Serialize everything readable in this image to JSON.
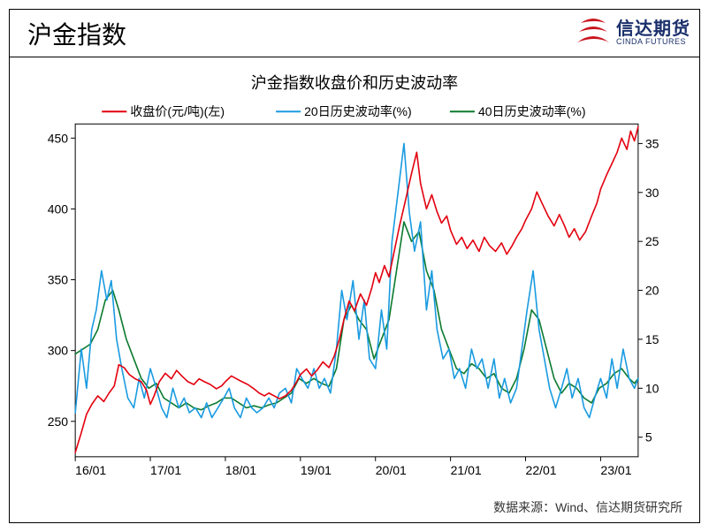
{
  "header": {
    "title": "沪金指数",
    "brand_cn": "信达期货",
    "brand_en": "CINDA FUTURES"
  },
  "source": "数据来源：Wind、信达期货研究所",
  "chart": {
    "type": "line",
    "title": "沪金指数收盘价和历史波动率",
    "title_fontsize": 18,
    "title_color": "#000000",
    "background_color": "#ffffff",
    "border_color": "#000000",
    "tick_fontsize": 14,
    "tick_color": "#000000",
    "line_width": 1.6,
    "legend": {
      "position": "top-inside",
      "fontsize": 14,
      "items": [
        {
          "label": "收盘价(元/吨)(左)",
          "color": "#e3000f"
        },
        {
          "label": "20日历史波动率(%)",
          "color": "#1a9be0"
        },
        {
          "label": "40日历史波动率(%)",
          "color": "#0b7a2f"
        }
      ]
    },
    "x": {
      "ticks": [
        "16/01",
        "17/01",
        "18/01",
        "19/01",
        "20/01",
        "21/01",
        "22/01",
        "23/01"
      ],
      "range": [
        0,
        7.5
      ]
    },
    "y_left": {
      "min": 225,
      "max": 460,
      "ticks": [
        250,
        300,
        350,
        400,
        450
      ]
    },
    "y_right": {
      "min": 3,
      "max": 37,
      "ticks": [
        5,
        10,
        15,
        20,
        25,
        30,
        35
      ]
    },
    "series": {
      "close": {
        "color": "#e3000f",
        "axis": "left",
        "points": [
          [
            0.0,
            228
          ],
          [
            0.08,
            242
          ],
          [
            0.15,
            255
          ],
          [
            0.22,
            262
          ],
          [
            0.3,
            268
          ],
          [
            0.38,
            264
          ],
          [
            0.45,
            270
          ],
          [
            0.52,
            275
          ],
          [
            0.58,
            290
          ],
          [
            0.65,
            288
          ],
          [
            0.72,
            283
          ],
          [
            0.8,
            280
          ],
          [
            0.88,
            278
          ],
          [
            0.95,
            272
          ],
          [
            1.0,
            262
          ],
          [
            1.05,
            268
          ],
          [
            1.12,
            278
          ],
          [
            1.2,
            284
          ],
          [
            1.28,
            280
          ],
          [
            1.35,
            286
          ],
          [
            1.42,
            282
          ],
          [
            1.5,
            278
          ],
          [
            1.58,
            276
          ],
          [
            1.65,
            280
          ],
          [
            1.72,
            278
          ],
          [
            1.8,
            276
          ],
          [
            1.88,
            273
          ],
          [
            1.95,
            275
          ],
          [
            2.0,
            278
          ],
          [
            2.08,
            282
          ],
          [
            2.15,
            280
          ],
          [
            2.22,
            278
          ],
          [
            2.3,
            276
          ],
          [
            2.38,
            273
          ],
          [
            2.45,
            270
          ],
          [
            2.52,
            268
          ],
          [
            2.58,
            270
          ],
          [
            2.65,
            268
          ],
          [
            2.72,
            266
          ],
          [
            2.8,
            268
          ],
          [
            2.88,
            272
          ],
          [
            2.95,
            278
          ],
          [
            3.0,
            283
          ],
          [
            3.08,
            287
          ],
          [
            3.15,
            282
          ],
          [
            3.22,
            286
          ],
          [
            3.3,
            292
          ],
          [
            3.38,
            288
          ],
          [
            3.45,
            296
          ],
          [
            3.52,
            308
          ],
          [
            3.58,
            322
          ],
          [
            3.65,
            335
          ],
          [
            3.72,
            328
          ],
          [
            3.8,
            340
          ],
          [
            3.88,
            332
          ],
          [
            3.95,
            344
          ],
          [
            4.0,
            355
          ],
          [
            4.05,
            348
          ],
          [
            4.12,
            360
          ],
          [
            4.18,
            352
          ],
          [
            4.25,
            370
          ],
          [
            4.32,
            388
          ],
          [
            4.4,
            406
          ],
          [
            4.48,
            425
          ],
          [
            4.55,
            440
          ],
          [
            4.6,
            418
          ],
          [
            4.68,
            400
          ],
          [
            4.75,
            410
          ],
          [
            4.82,
            398
          ],
          [
            4.88,
            390
          ],
          [
            4.95,
            395
          ],
          [
            5.0,
            385
          ],
          [
            5.08,
            375
          ],
          [
            5.15,
            380
          ],
          [
            5.22,
            372
          ],
          [
            5.3,
            378
          ],
          [
            5.38,
            370
          ],
          [
            5.45,
            380
          ],
          [
            5.52,
            374
          ],
          [
            5.6,
            370
          ],
          [
            5.68,
            376
          ],
          [
            5.75,
            368
          ],
          [
            5.82,
            374
          ],
          [
            5.88,
            380
          ],
          [
            5.95,
            386
          ],
          [
            6.0,
            392
          ],
          [
            6.08,
            400
          ],
          [
            6.15,
            412
          ],
          [
            6.22,
            404
          ],
          [
            6.3,
            395
          ],
          [
            6.38,
            388
          ],
          [
            6.45,
            396
          ],
          [
            6.52,
            388
          ],
          [
            6.58,
            380
          ],
          [
            6.65,
            386
          ],
          [
            6.72,
            378
          ],
          [
            6.8,
            384
          ],
          [
            6.88,
            395
          ],
          [
            6.95,
            404
          ],
          [
            7.0,
            414
          ],
          [
            7.08,
            424
          ],
          [
            7.15,
            432
          ],
          [
            7.22,
            440
          ],
          [
            7.28,
            450
          ],
          [
            7.35,
            442
          ],
          [
            7.4,
            455
          ],
          [
            7.45,
            448
          ],
          [
            7.5,
            458
          ]
        ]
      },
      "hv20": {
        "color": "#1a9be0",
        "axis": "right",
        "points": [
          [
            0.0,
            7.5
          ],
          [
            0.08,
            14
          ],
          [
            0.15,
            10
          ],
          [
            0.22,
            16
          ],
          [
            0.28,
            18
          ],
          [
            0.35,
            22
          ],
          [
            0.42,
            19
          ],
          [
            0.48,
            21
          ],
          [
            0.55,
            15
          ],
          [
            0.62,
            12
          ],
          [
            0.7,
            9
          ],
          [
            0.78,
            8
          ],
          [
            0.85,
            11
          ],
          [
            0.92,
            9
          ],
          [
            1.0,
            12
          ],
          [
            1.08,
            10
          ],
          [
            1.15,
            8
          ],
          [
            1.22,
            7
          ],
          [
            1.3,
            10
          ],
          [
            1.38,
            8
          ],
          [
            1.45,
            9
          ],
          [
            1.52,
            7.5
          ],
          [
            1.6,
            8
          ],
          [
            1.68,
            7
          ],
          [
            1.75,
            8.5
          ],
          [
            1.82,
            7
          ],
          [
            1.9,
            8
          ],
          [
            1.98,
            9
          ],
          [
            2.05,
            10
          ],
          [
            2.12,
            8
          ],
          [
            2.2,
            7
          ],
          [
            2.28,
            9
          ],
          [
            2.35,
            8
          ],
          [
            2.42,
            7.5
          ],
          [
            2.5,
            8
          ],
          [
            2.58,
            9
          ],
          [
            2.65,
            8
          ],
          [
            2.72,
            9.5
          ],
          [
            2.8,
            10
          ],
          [
            2.88,
            8.5
          ],
          [
            2.95,
            12
          ],
          [
            3.02,
            11
          ],
          [
            3.1,
            10
          ],
          [
            3.18,
            12
          ],
          [
            3.25,
            10
          ],
          [
            3.32,
            11
          ],
          [
            3.4,
            9.5
          ],
          [
            3.48,
            14
          ],
          [
            3.55,
            20
          ],
          [
            3.62,
            17
          ],
          [
            3.7,
            21
          ],
          [
            3.78,
            15
          ],
          [
            3.85,
            19
          ],
          [
            3.92,
            13
          ],
          [
            4.0,
            12
          ],
          [
            4.08,
            18
          ],
          [
            4.15,
            14
          ],
          [
            4.22,
            25
          ],
          [
            4.3,
            30
          ],
          [
            4.38,
            35
          ],
          [
            4.45,
            28
          ],
          [
            4.52,
            24
          ],
          [
            4.6,
            27
          ],
          [
            4.68,
            18
          ],
          [
            4.75,
            22
          ],
          [
            4.82,
            16
          ],
          [
            4.9,
            13
          ],
          [
            4.98,
            14
          ],
          [
            5.05,
            11
          ],
          [
            5.12,
            12
          ],
          [
            5.2,
            10
          ],
          [
            5.28,
            14
          ],
          [
            5.35,
            12
          ],
          [
            5.42,
            13
          ],
          [
            5.5,
            10
          ],
          [
            5.58,
            13
          ],
          [
            5.65,
            9
          ],
          [
            5.72,
            11
          ],
          [
            5.8,
            8.5
          ],
          [
            5.88,
            10
          ],
          [
            5.95,
            14
          ],
          [
            6.02,
            18
          ],
          [
            6.1,
            22
          ],
          [
            6.18,
            16
          ],
          [
            6.25,
            13
          ],
          [
            6.32,
            10
          ],
          [
            6.4,
            8
          ],
          [
            6.48,
            10
          ],
          [
            6.55,
            12
          ],
          [
            6.62,
            9
          ],
          [
            6.7,
            11
          ],
          [
            6.78,
            8
          ],
          [
            6.85,
            7
          ],
          [
            6.92,
            9
          ],
          [
            7.0,
            11
          ],
          [
            7.08,
            9
          ],
          [
            7.15,
            13
          ],
          [
            7.22,
            10
          ],
          [
            7.3,
            14
          ],
          [
            7.38,
            11
          ],
          [
            7.45,
            10
          ],
          [
            7.5,
            11
          ]
        ]
      },
      "hv40": {
        "color": "#0b7a2f",
        "axis": "right",
        "points": [
          [
            0.0,
            13.5
          ],
          [
            0.1,
            14
          ],
          [
            0.2,
            14.5
          ],
          [
            0.3,
            16
          ],
          [
            0.4,
            19
          ],
          [
            0.5,
            20
          ],
          [
            0.58,
            18
          ],
          [
            0.68,
            15
          ],
          [
            0.78,
            13
          ],
          [
            0.88,
            11
          ],
          [
            0.98,
            10
          ],
          [
            1.08,
            10.5
          ],
          [
            1.18,
            9
          ],
          [
            1.28,
            8.5
          ],
          [
            1.38,
            8
          ],
          [
            1.48,
            8.5
          ],
          [
            1.58,
            8
          ],
          [
            1.68,
            7.8
          ],
          [
            1.78,
            8.2
          ],
          [
            1.88,
            8.5
          ],
          [
            1.98,
            9
          ],
          [
            2.08,
            9
          ],
          [
            2.18,
            8.5
          ],
          [
            2.28,
            8
          ],
          [
            2.38,
            8.2
          ],
          [
            2.48,
            8
          ],
          [
            2.58,
            8.3
          ],
          [
            2.68,
            8.5
          ],
          [
            2.78,
            9
          ],
          [
            2.88,
            9.5
          ],
          [
            2.98,
            11
          ],
          [
            3.08,
            10.5
          ],
          [
            3.18,
            11
          ],
          [
            3.28,
            10.5
          ],
          [
            3.38,
            10.2
          ],
          [
            3.48,
            12
          ],
          [
            3.58,
            17
          ],
          [
            3.68,
            18.5
          ],
          [
            3.78,
            17
          ],
          [
            3.88,
            16
          ],
          [
            3.98,
            13
          ],
          [
            4.08,
            15
          ],
          [
            4.18,
            17
          ],
          [
            4.28,
            22
          ],
          [
            4.38,
            27
          ],
          [
            4.48,
            25
          ],
          [
            4.58,
            26
          ],
          [
            4.68,
            22
          ],
          [
            4.78,
            20
          ],
          [
            4.88,
            16
          ],
          [
            4.98,
            14
          ],
          [
            5.08,
            12
          ],
          [
            5.18,
            11.5
          ],
          [
            5.28,
            12.5
          ],
          [
            5.38,
            12
          ],
          [
            5.48,
            11
          ],
          [
            5.58,
            11.5
          ],
          [
            5.68,
            10
          ],
          [
            5.78,
            9.5
          ],
          [
            5.88,
            11
          ],
          [
            5.98,
            14
          ],
          [
            6.08,
            18
          ],
          [
            6.18,
            17
          ],
          [
            6.28,
            14
          ],
          [
            6.38,
            11
          ],
          [
            6.48,
            9.5
          ],
          [
            6.58,
            10.5
          ],
          [
            6.68,
            10
          ],
          [
            6.78,
            9
          ],
          [
            6.88,
            8.5
          ],
          [
            6.98,
            10
          ],
          [
            7.08,
            10.5
          ],
          [
            7.18,
            11.5
          ],
          [
            7.28,
            12
          ],
          [
            7.38,
            11
          ],
          [
            7.45,
            10.5
          ],
          [
            7.5,
            11
          ]
        ]
      }
    }
  }
}
